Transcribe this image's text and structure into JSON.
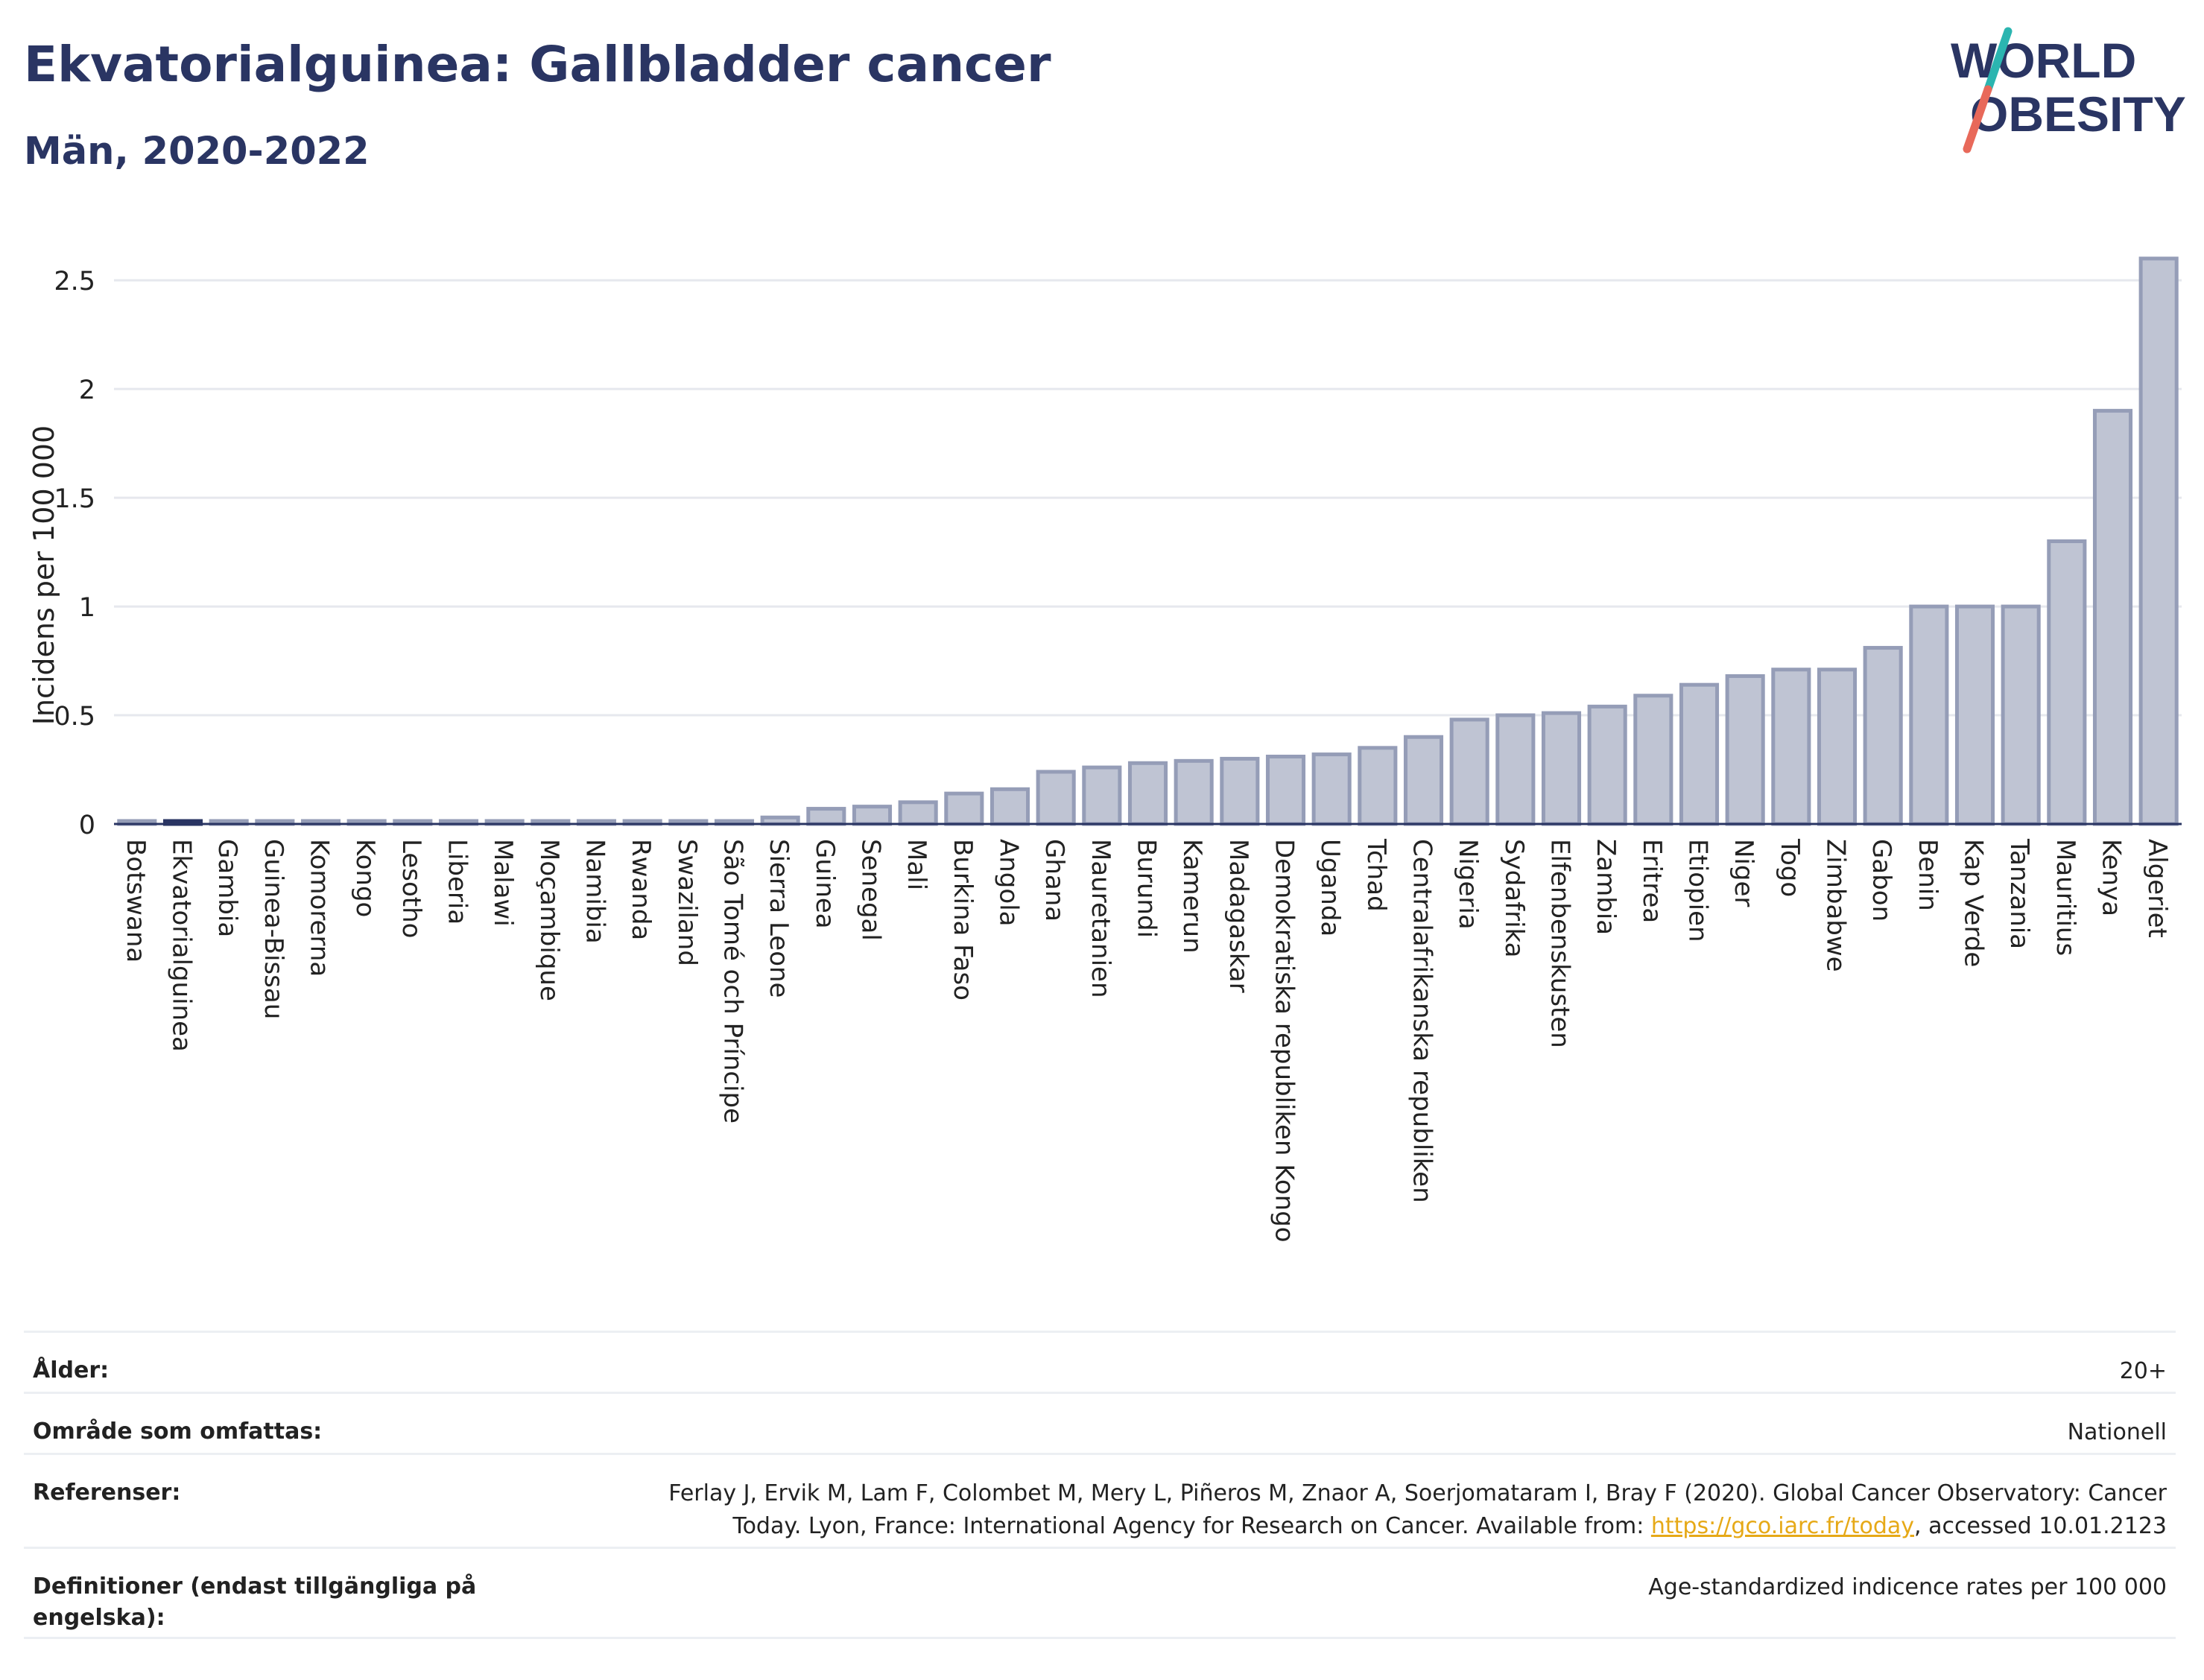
{
  "header": {
    "title": "Ekvatorialguinea: Gallbladder cancer",
    "subtitle": "Män, 2020-2022"
  },
  "logo": {
    "line1": "WORLD",
    "line2": "OBESITY"
  },
  "colors": {
    "bar_fill": "#bfc4d3",
    "bar_stroke": "#959db7",
    "highlight": "#2a3563",
    "grid": "#e6e8ee",
    "title": "#2a3563",
    "logo_slash_teal": "#2bb5b0",
    "logo_slash_red": "#e8695a",
    "link": "#e6a917"
  },
  "chart_data": {
    "type": "bar",
    "ylabel": "Incidens per 100 000",
    "ylim": [
      0,
      2.6
    ],
    "yticks": [
      0,
      0.5,
      1,
      1.5,
      2,
      2.5
    ],
    "ytick_labels": [
      "0",
      "0.5",
      "1",
      "1.5",
      "2",
      "2.5"
    ],
    "highlighted": "Ekvatorialguinea",
    "categories": [
      "Botswana",
      "Ekvatorialguinea",
      "Gambia",
      "Guinea-Bissau",
      "Komorerna",
      "Kongo",
      "Lesotho",
      "Liberia",
      "Malawi",
      "Moçambique",
      "Namibia",
      "Rwanda",
      "Swaziland",
      "São Tomé och Príncipe",
      "Sierra Leone",
      "Guinea",
      "Senegal",
      "Mali",
      "Burkina Faso",
      "Angola",
      "Ghana",
      "Mauretanien",
      "Burundi",
      "Kamerun",
      "Madagaskar",
      "Demokratiska republiken Kongo",
      "Uganda",
      "Tchad",
      "Centralafrikanska republiken",
      "Nigeria",
      "Sydafrika",
      "Elfenbenskusten",
      "Zambia",
      "Eritrea",
      "Etiopien",
      "Niger",
      "Togo",
      "Zimbabwe",
      "Gabon",
      "Benin",
      "Kap Verde",
      "Tanzania",
      "Mauritius",
      "Kenya",
      "Algeriet"
    ],
    "values": [
      0.01,
      0.01,
      0.01,
      0.01,
      0.01,
      0.01,
      0.01,
      0.01,
      0.01,
      0.01,
      0.01,
      0.01,
      0.01,
      0.01,
      0.03,
      0.07,
      0.08,
      0.1,
      0.14,
      0.16,
      0.24,
      0.26,
      0.28,
      0.29,
      0.3,
      0.31,
      0.32,
      0.35,
      0.4,
      0.48,
      0.5,
      0.51,
      0.54,
      0.59,
      0.64,
      0.68,
      0.71,
      0.71,
      0.81,
      1.0,
      1.0,
      1.0,
      1.3,
      1.9,
      2.6
    ]
  },
  "meta": {
    "age_label": "Ålder:",
    "age_value": "20+",
    "area_label": "Område som omfattas:",
    "area_value": "Nationell",
    "ref_label": "Referenser:",
    "ref_text_1": "Ferlay J, Ervik M, Lam F, Colombet M, Mery L, Piñeros M, Znaor A, Soerjomataram I, Bray F (2020). Global Cancer Observatory: Cancer",
    "ref_text_2": "Today. Lyon, France: International Agency for Research on Cancer. Available from: ",
    "ref_link": "https://gco.iarc.fr/today",
    "ref_text_3": ", accessed 10.01.2123",
    "def_label": "Definitioner (endast tillgängliga på engelska):",
    "def_value": "Age-standardized indicence rates per 100 000"
  }
}
